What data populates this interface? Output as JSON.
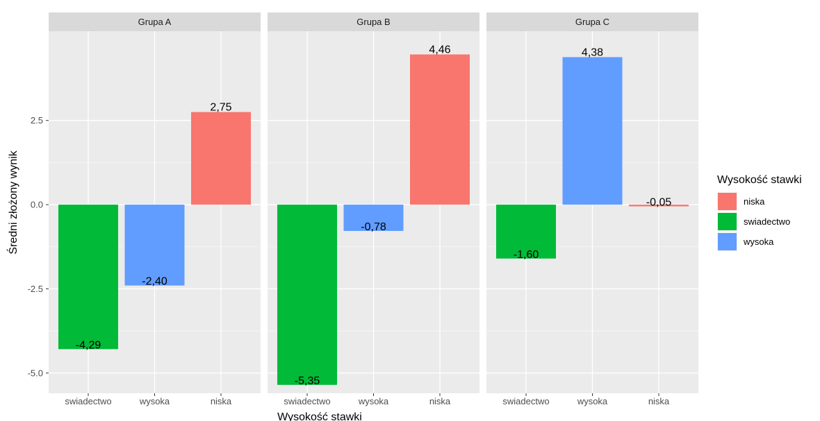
{
  "chart_data": {
    "type": "bar",
    "xlabel": "Wysokość stawki",
    "ylabel": "Średni złożony wynik",
    "ylim": [
      -5.6,
      5.15
    ],
    "yticks": [
      "-5.0",
      "-2.5",
      "0.0",
      "2.5"
    ],
    "ytick_values": [
      -5.0,
      -2.5,
      0.0,
      2.5
    ],
    "grid": true,
    "legend": {
      "title": "Wysokość stawki",
      "position": "right",
      "items": [
        {
          "label": "niska",
          "color": "#F8766D"
        },
        {
          "label": "swiadectwo",
          "color": "#00BA38"
        },
        {
          "label": "wysoka",
          "color": "#619CFF"
        }
      ]
    },
    "panels": [
      {
        "title": "Grupa A",
        "categories": [
          "swiadectwo",
          "wysoka",
          "niska"
        ],
        "values": [
          -4.29,
          -2.4,
          2.75
        ],
        "labels": [
          "-4,29",
          "-2,40",
          "2,75"
        ]
      },
      {
        "title": "Grupa B",
        "categories": [
          "swiadectwo",
          "wysoka",
          "niska"
        ],
        "values": [
          -5.35,
          -0.78,
          4.46
        ],
        "labels": [
          "-5,35",
          "-0,78",
          "4,46"
        ]
      },
      {
        "title": "Grupa C",
        "categories": [
          "swiadectwo",
          "wysoka",
          "niska"
        ],
        "values": [
          -1.6,
          4.38,
          -0.05
        ],
        "labels": [
          "-1,60",
          "4,38",
          "-0,05"
        ]
      }
    ]
  }
}
